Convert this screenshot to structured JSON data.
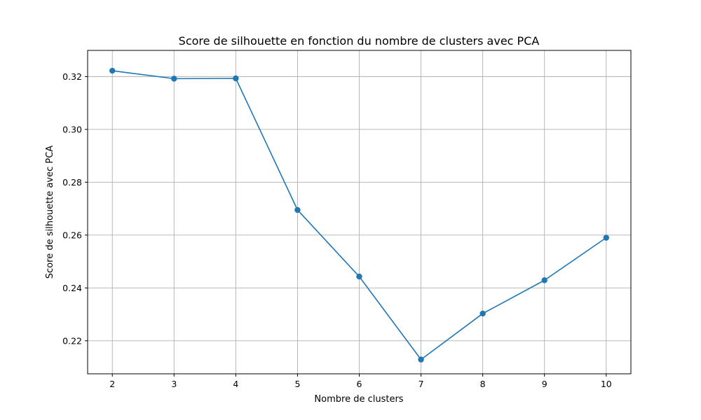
{
  "chart_data": {
    "type": "line",
    "title": "Score de silhouette en fonction du nombre de clusters avec PCA",
    "xlabel": "Nombre de clusters",
    "ylabel": "Score de silhouette avec PCA",
    "x": [
      2,
      3,
      4,
      5,
      6,
      7,
      8,
      9,
      10
    ],
    "series": [
      {
        "values": [
          0.3222,
          0.3192,
          0.3193,
          0.2695,
          0.2443,
          0.2129,
          0.2303,
          0.2429,
          0.259
        ],
        "color": "#1f77b4",
        "marker": "circle"
      }
    ],
    "xticks": [
      "2",
      "3",
      "4",
      "5",
      "6",
      "7",
      "8",
      "9",
      "10"
    ],
    "yticks": [
      "0.22",
      "0.24",
      "0.26",
      "0.28",
      "0.30",
      "0.32"
    ],
    "ytick_values": [
      0.22,
      0.24,
      0.26,
      0.28,
      0.3,
      0.32
    ],
    "xlim": [
      1.6,
      10.4
    ],
    "ylim": [
      0.2075,
      0.3299
    ],
    "grid": true,
    "colors": {
      "line": "#1f77b4",
      "grid": "#b0b0b0",
      "axes": "#000000"
    }
  }
}
